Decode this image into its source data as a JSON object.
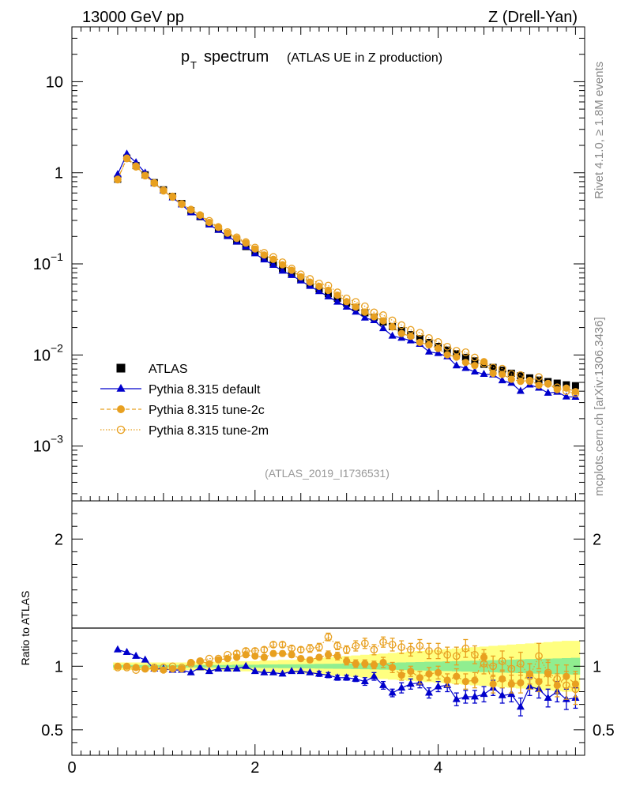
{
  "header": {
    "energy": "13000 GeV pp",
    "process": "Z (Drell-Yan)"
  },
  "side": {
    "rivet": "Rivet 4.1.0, ≥ 1.8M events",
    "mcplots": "mcplots.cern.ch [arXiv:1306.3436]"
  },
  "chart_data": {
    "type": "scatter",
    "title_main": "p",
    "title_sub": "T",
    "title_word": "spectrum",
    "title_rest": "(ATLAS UE in Z production)",
    "analysis_tag": "(ATLAS_2019_I1736531)",
    "xlabel": "",
    "xlim": [
      0,
      5.6
    ],
    "ylim_main": [
      0.00025,
      40
    ],
    "ylim_ratio": [
      0.3,
      2.3
    ],
    "ratio_ylabel": "Ratio to ATLAS",
    "x_ticks": [
      "0",
      "2",
      "4"
    ],
    "y_ticks_main": [
      {
        "base": "10",
        "exp": "",
        "value": 10
      },
      {
        "base": "1",
        "exp": "",
        "value": 1
      },
      {
        "base": "10",
        "exp": "−1",
        "value": 0.1
      },
      {
        "base": "10",
        "exp": "−2",
        "value": 0.01
      },
      {
        "base": "10",
        "exp": "−3",
        "value": 0.001
      }
    ],
    "y_ticks_ratio": [
      "0.5",
      "1",
      "2"
    ],
    "y_ticks_ratio_values": [
      0.5,
      1,
      2
    ],
    "legend": [
      {
        "label": "ATLAS",
        "key": "atlas"
      },
      {
        "label": "Pythia 8.315 default",
        "key": "default"
      },
      {
        "label": "Pythia 8.315 tune-2c",
        "key": "tune2c"
      },
      {
        "label": "Pythia 8.315 tune-2m",
        "key": "tune2m"
      }
    ],
    "colors": {
      "atlas": "#000000",
      "default": "#0000cc",
      "tune2c": "#e8a020",
      "tune2m": "#e8a020",
      "band_stat": "#90ee90",
      "band_total": "#ffff80"
    },
    "x": [
      0.5,
      0.6,
      0.7,
      0.8,
      0.9,
      1.0,
      1.1,
      1.2,
      1.3,
      1.4,
      1.5,
      1.6,
      1.7,
      1.8,
      1.9,
      2.0,
      2.1,
      2.2,
      2.3,
      2.4,
      2.5,
      2.6,
      2.7,
      2.8,
      2.9,
      3.0,
      3.1,
      3.2,
      3.3,
      3.4,
      3.5,
      3.6,
      3.7,
      3.8,
      3.9,
      4.0,
      4.1,
      4.2,
      4.3,
      4.4,
      4.5,
      4.6,
      4.7,
      4.8,
      4.9,
      5.0,
      5.1,
      5.2,
      5.3,
      5.4,
      5.5
    ],
    "atlas": [
      0.85,
      1.45,
      1.2,
      0.95,
      0.78,
      0.65,
      0.55,
      0.46,
      0.385,
      0.33,
      0.28,
      0.24,
      0.205,
      0.178,
      0.155,
      0.135,
      0.117,
      0.102,
      0.089,
      0.078,
      0.068,
      0.06,
      0.053,
      0.047,
      0.042,
      0.037,
      0.033,
      0.029,
      0.026,
      0.023,
      0.0205,
      0.0185,
      0.0167,
      0.0151,
      0.0137,
      0.0124,
      0.0113,
      0.0103,
      0.0094,
      0.0086,
      0.0079,
      0.0073,
      0.0068,
      0.0063,
      0.0059,
      0.0056,
      0.0053,
      0.0051,
      0.0049,
      0.0047,
      0.0046
    ],
    "series": [
      {
        "name": "Pythia 8.315 default",
        "key": "default",
        "ratio": [
          1.13,
          1.11,
          1.08,
          1.05,
          0.98,
          0.98,
          0.97,
          0.97,
          0.95,
          0.99,
          0.96,
          0.98,
          0.98,
          0.98,
          1.0,
          0.96,
          0.95,
          0.95,
          0.94,
          0.96,
          0.96,
          0.95,
          0.94,
          0.93,
          0.91,
          0.91,
          0.9,
          0.88,
          0.92,
          0.85,
          0.79,
          0.83,
          0.86,
          0.87,
          0.79,
          0.84,
          0.85,
          0.74,
          0.76,
          0.76,
          0.78,
          0.83,
          0.77,
          0.78,
          0.68,
          0.84,
          0.82,
          0.75,
          0.8,
          0.74,
          0.75
        ],
        "ratio_err": [
          0.01,
          0.01,
          0.01,
          0.01,
          0.01,
          0.01,
          0.01,
          0.01,
          0.01,
          0.01,
          0.01,
          0.01,
          0.01,
          0.01,
          0.01,
          0.01,
          0.01,
          0.01,
          0.01,
          0.01,
          0.01,
          0.01,
          0.02,
          0.02,
          0.02,
          0.02,
          0.02,
          0.03,
          0.03,
          0.03,
          0.03,
          0.04,
          0.04,
          0.04,
          0.04,
          0.04,
          0.05,
          0.05,
          0.05,
          0.05,
          0.06,
          0.06,
          0.06,
          0.06,
          0.07,
          0.07,
          0.07,
          0.07,
          0.08,
          0.08,
          0.08
        ]
      },
      {
        "name": "Pythia 8.315 tune-2c",
        "key": "tune2c",
        "ratio": [
          1.0,
          1.0,
          0.99,
          0.98,
          0.98,
          0.97,
          0.98,
          0.98,
          1.03,
          1.04,
          1.02,
          1.05,
          1.06,
          1.07,
          1.09,
          1.08,
          1.07,
          1.1,
          1.1,
          1.09,
          1.06,
          1.05,
          1.07,
          1.09,
          1.08,
          1.04,
          1.02,
          1.02,
          1.01,
          1.03,
          0.99,
          0.93,
          0.96,
          0.91,
          0.94,
          0.95,
          0.89,
          0.92,
          0.88,
          0.89,
          1.07,
          0.86,
          0.9,
          0.86,
          0.87,
          0.94,
          0.88,
          0.94,
          0.85,
          0.92,
          0.86
        ],
        "ratio_err": [
          0.01,
          0.01,
          0.01,
          0.01,
          0.01,
          0.01,
          0.01,
          0.01,
          0.01,
          0.01,
          0.01,
          0.01,
          0.01,
          0.01,
          0.01,
          0.01,
          0.02,
          0.02,
          0.02,
          0.02,
          0.02,
          0.02,
          0.02,
          0.03,
          0.03,
          0.03,
          0.03,
          0.03,
          0.03,
          0.04,
          0.04,
          0.04,
          0.04,
          0.05,
          0.05,
          0.05,
          0.05,
          0.06,
          0.06,
          0.06,
          0.06,
          0.07,
          0.07,
          0.07,
          0.08,
          0.08,
          0.08,
          0.09,
          0.09,
          0.09,
          0.1
        ]
      },
      {
        "name": "Pythia 8.315 tune-2m",
        "key": "tune2m",
        "ratio": [
          0.99,
          0.99,
          0.97,
          0.98,
          0.99,
          0.99,
          1.0,
          0.99,
          1.02,
          1.04,
          1.06,
          1.06,
          1.09,
          1.1,
          1.12,
          1.12,
          1.13,
          1.17,
          1.17,
          1.14,
          1.13,
          1.14,
          1.15,
          1.23,
          1.16,
          1.13,
          1.16,
          1.18,
          1.13,
          1.19,
          1.17,
          1.15,
          1.13,
          1.16,
          1.12,
          1.12,
          1.09,
          1.08,
          1.14,
          1.09,
          1.02,
          1.0,
          1.04,
          0.98,
          1.02,
          0.92,
          1.08,
          0.95,
          0.9,
          0.85,
          0.82
        ],
        "ratio_err": [
          0.01,
          0.01,
          0.01,
          0.01,
          0.01,
          0.01,
          0.01,
          0.01,
          0.01,
          0.01,
          0.01,
          0.01,
          0.01,
          0.02,
          0.02,
          0.02,
          0.02,
          0.02,
          0.02,
          0.02,
          0.02,
          0.03,
          0.03,
          0.03,
          0.03,
          0.03,
          0.04,
          0.04,
          0.04,
          0.04,
          0.05,
          0.05,
          0.05,
          0.05,
          0.06,
          0.06,
          0.06,
          0.07,
          0.07,
          0.07,
          0.08,
          0.08,
          0.08,
          0.09,
          0.09,
          0.1,
          0.1,
          0.1,
          0.11,
          0.11,
          0.12
        ]
      }
    ],
    "band_stat_halfwidth": [
      0.01,
      0.01,
      0.01,
      0.01,
      0.01,
      0.01,
      0.01,
      0.01,
      0.01,
      0.01,
      0.01,
      0.01,
      0.01,
      0.012,
      0.012,
      0.012,
      0.014,
      0.014,
      0.015,
      0.015,
      0.016,
      0.017,
      0.018,
      0.019,
      0.02,
      0.021,
      0.022,
      0.024,
      0.025,
      0.027,
      0.028,
      0.03,
      0.031,
      0.033,
      0.035,
      0.036,
      0.038,
      0.04,
      0.042,
      0.044,
      0.046,
      0.048,
      0.05,
      0.052,
      0.054,
      0.056,
      0.058,
      0.06,
      0.062,
      0.064,
      0.066
    ],
    "band_total_halfwidth": [
      0.03,
      0.03,
      0.03,
      0.03,
      0.03,
      0.03,
      0.03,
      0.03,
      0.03,
      0.035,
      0.035,
      0.035,
      0.035,
      0.04,
      0.04,
      0.04,
      0.045,
      0.045,
      0.05,
      0.05,
      0.055,
      0.06,
      0.065,
      0.07,
      0.075,
      0.08,
      0.085,
      0.09,
      0.095,
      0.1,
      0.105,
      0.11,
      0.115,
      0.12,
      0.125,
      0.13,
      0.135,
      0.14,
      0.145,
      0.15,
      0.155,
      0.16,
      0.165,
      0.17,
      0.175,
      0.18,
      0.185,
      0.19,
      0.195,
      0.2,
      0.2
    ]
  }
}
